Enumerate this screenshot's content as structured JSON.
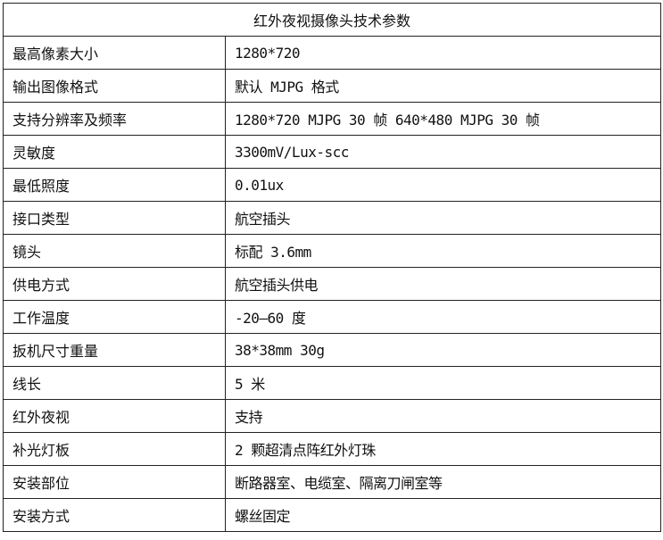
{
  "title": "红外夜视摄像头技术参数",
  "rows": [
    {
      "label": "最高像素大小",
      "value": "1280*720"
    },
    {
      "label": "输出图像格式",
      "value": "默认 MJPG 格式"
    },
    {
      "label": "支持分辨率及频率",
      "value": "1280*720 MJPG 30 帧  640*480 MJPG 30 帧"
    },
    {
      "label": "灵敏度",
      "value": "3300mV/Lux-scc"
    },
    {
      "label": "最低照度",
      "value": "0.01ux"
    },
    {
      "label": "接口类型",
      "value": "航空插头"
    },
    {
      "label": "镜头",
      "value": "标配 3.6mm"
    },
    {
      "label": "供电方式",
      "value": "航空插头供电"
    },
    {
      "label": "工作温度",
      "value": "-20—60 度"
    },
    {
      "label": "扳机尺寸重量",
      "value": "38*38mm 30g"
    },
    {
      "label": "线长",
      "value": "5 米"
    },
    {
      "label": "红外夜视",
      "value": "支持"
    },
    {
      "label": "补光灯板",
      "value": "2 颗超清点阵红外灯珠"
    },
    {
      "label": "安装部位",
      "value": "断路器室、电缆室、隔离刀闸室等"
    },
    {
      "label": "安装方式",
      "value": "螺丝固定"
    }
  ]
}
